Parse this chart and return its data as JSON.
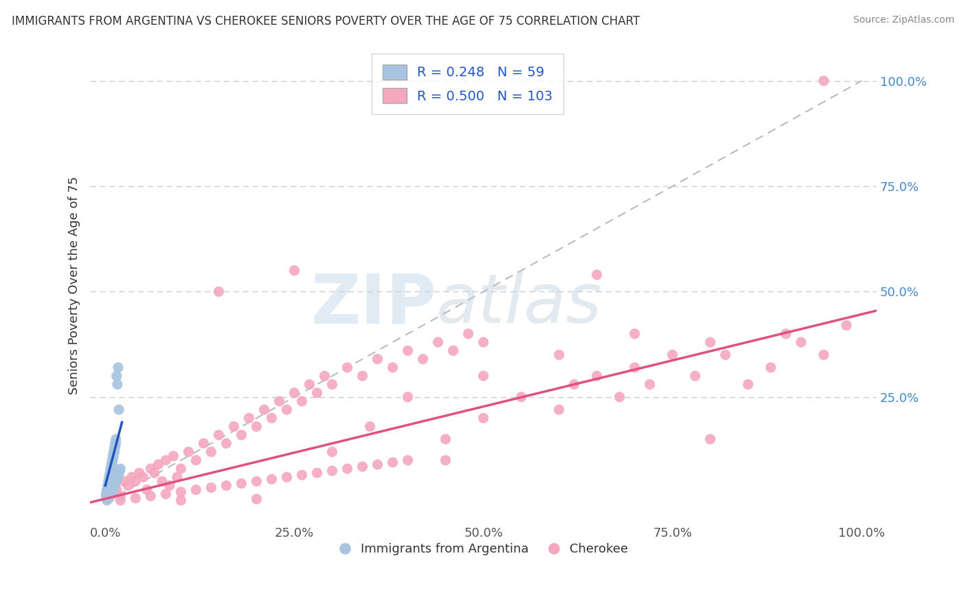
{
  "title": "IMMIGRANTS FROM ARGENTINA VS CHEROKEE SENIORS POVERTY OVER THE AGE OF 75 CORRELATION CHART",
  "source": "Source: ZipAtlas.com",
  "ylabel": "Seniors Poverty Over the Age of 75",
  "xlim": [
    -0.02,
    1.02
  ],
  "ylim": [
    -0.05,
    1.08
  ],
  "x_ticks": [
    0,
    0.25,
    0.5,
    0.75,
    1.0
  ],
  "x_tick_labels": [
    "0.0%",
    "25.0%",
    "50.0%",
    "75.0%",
    "100.0%"
  ],
  "y_ticks": [
    0.25,
    0.5,
    0.75,
    1.0
  ],
  "y_tick_labels": [
    "25.0%",
    "50.0%",
    "75.0%",
    "100.0%"
  ],
  "legend_blue_r": "0.248",
  "legend_blue_n": "59",
  "legend_pink_r": "0.500",
  "legend_pink_n": "103",
  "legend_label_blue": "Immigrants from Argentina",
  "legend_label_pink": "Cherokee",
  "blue_color": "#a8c4e0",
  "pink_color": "#f4a8c0",
  "blue_line_color": "#2255bb",
  "pink_line_color": "#e05080",
  "blue_scatter": [
    [
      0.001,
      0.02
    ],
    [
      0.001,
      0.015
    ],
    [
      0.002,
      0.03
    ],
    [
      0.002,
      0.025
    ],
    [
      0.002,
      0.02
    ],
    [
      0.003,
      0.04
    ],
    [
      0.003,
      0.03
    ],
    [
      0.003,
      0.02
    ],
    [
      0.004,
      0.05
    ],
    [
      0.004,
      0.04
    ],
    [
      0.004,
      0.03
    ],
    [
      0.005,
      0.06
    ],
    [
      0.005,
      0.05
    ],
    [
      0.005,
      0.04
    ],
    [
      0.006,
      0.07
    ],
    [
      0.006,
      0.06
    ],
    [
      0.006,
      0.05
    ],
    [
      0.007,
      0.08
    ],
    [
      0.007,
      0.07
    ],
    [
      0.007,
      0.06
    ],
    [
      0.008,
      0.09
    ],
    [
      0.008,
      0.08
    ],
    [
      0.008,
      0.07
    ],
    [
      0.009,
      0.1
    ],
    [
      0.009,
      0.09
    ],
    [
      0.009,
      0.08
    ],
    [
      0.01,
      0.11
    ],
    [
      0.01,
      0.1
    ],
    [
      0.011,
      0.12
    ],
    [
      0.011,
      0.11
    ],
    [
      0.012,
      0.13
    ],
    [
      0.012,
      0.12
    ],
    [
      0.013,
      0.14
    ],
    [
      0.013,
      0.13
    ],
    [
      0.014,
      0.15
    ],
    [
      0.014,
      0.14
    ],
    [
      0.015,
      0.3
    ],
    [
      0.016,
      0.28
    ],
    [
      0.017,
      0.32
    ],
    [
      0.018,
      0.22
    ],
    [
      0.002,
      0.005
    ],
    [
      0.003,
      0.008
    ],
    [
      0.004,
      0.01
    ],
    [
      0.005,
      0.012
    ],
    [
      0.006,
      0.015
    ],
    [
      0.007,
      0.018
    ],
    [
      0.008,
      0.02
    ],
    [
      0.009,
      0.025
    ],
    [
      0.01,
      0.03
    ],
    [
      0.011,
      0.035
    ],
    [
      0.012,
      0.04
    ],
    [
      0.013,
      0.045
    ],
    [
      0.014,
      0.05
    ],
    [
      0.015,
      0.055
    ],
    [
      0.016,
      0.06
    ],
    [
      0.017,
      0.065
    ],
    [
      0.018,
      0.07
    ],
    [
      0.019,
      0.075
    ],
    [
      0.02,
      0.08
    ]
  ],
  "pink_scatter": [
    [
      0.005,
      0.01
    ],
    [
      0.01,
      0.02
    ],
    [
      0.015,
      0.03
    ],
    [
      0.02,
      0.015
    ],
    [
      0.025,
      0.05
    ],
    [
      0.03,
      0.04
    ],
    [
      0.035,
      0.06
    ],
    [
      0.04,
      0.05
    ],
    [
      0.045,
      0.07
    ],
    [
      0.05,
      0.06
    ],
    [
      0.055,
      0.03
    ],
    [
      0.06,
      0.08
    ],
    [
      0.065,
      0.07
    ],
    [
      0.07,
      0.09
    ],
    [
      0.075,
      0.05
    ],
    [
      0.08,
      0.1
    ],
    [
      0.085,
      0.04
    ],
    [
      0.09,
      0.11
    ],
    [
      0.095,
      0.06
    ],
    [
      0.1,
      0.08
    ],
    [
      0.11,
      0.12
    ],
    [
      0.12,
      0.1
    ],
    [
      0.13,
      0.14
    ],
    [
      0.14,
      0.12
    ],
    [
      0.15,
      0.16
    ],
    [
      0.16,
      0.14
    ],
    [
      0.17,
      0.18
    ],
    [
      0.18,
      0.16
    ],
    [
      0.19,
      0.2
    ],
    [
      0.2,
      0.18
    ],
    [
      0.21,
      0.22
    ],
    [
      0.22,
      0.2
    ],
    [
      0.23,
      0.24
    ],
    [
      0.24,
      0.22
    ],
    [
      0.25,
      0.26
    ],
    [
      0.26,
      0.24
    ],
    [
      0.27,
      0.28
    ],
    [
      0.28,
      0.26
    ],
    [
      0.29,
      0.3
    ],
    [
      0.3,
      0.28
    ],
    [
      0.32,
      0.32
    ],
    [
      0.34,
      0.3
    ],
    [
      0.36,
      0.34
    ],
    [
      0.38,
      0.32
    ],
    [
      0.4,
      0.36
    ],
    [
      0.42,
      0.34
    ],
    [
      0.44,
      0.38
    ],
    [
      0.46,
      0.36
    ],
    [
      0.48,
      0.4
    ],
    [
      0.5,
      0.38
    ],
    [
      0.02,
      0.005
    ],
    [
      0.04,
      0.01
    ],
    [
      0.06,
      0.015
    ],
    [
      0.08,
      0.02
    ],
    [
      0.1,
      0.025
    ],
    [
      0.12,
      0.03
    ],
    [
      0.14,
      0.035
    ],
    [
      0.16,
      0.04
    ],
    [
      0.18,
      0.045
    ],
    [
      0.2,
      0.05
    ],
    [
      0.22,
      0.055
    ],
    [
      0.24,
      0.06
    ],
    [
      0.26,
      0.065
    ],
    [
      0.28,
      0.07
    ],
    [
      0.3,
      0.075
    ],
    [
      0.32,
      0.08
    ],
    [
      0.34,
      0.085
    ],
    [
      0.36,
      0.09
    ],
    [
      0.38,
      0.095
    ],
    [
      0.4,
      0.1
    ],
    [
      0.45,
      0.15
    ],
    [
      0.5,
      0.2
    ],
    [
      0.55,
      0.25
    ],
    [
      0.6,
      0.22
    ],
    [
      0.62,
      0.28
    ],
    [
      0.65,
      0.3
    ],
    [
      0.68,
      0.25
    ],
    [
      0.7,
      0.32
    ],
    [
      0.72,
      0.28
    ],
    [
      0.75,
      0.35
    ],
    [
      0.78,
      0.3
    ],
    [
      0.8,
      0.38
    ],
    [
      0.82,
      0.35
    ],
    [
      0.85,
      0.28
    ],
    [
      0.88,
      0.32
    ],
    [
      0.9,
      0.4
    ],
    [
      0.92,
      0.38
    ],
    [
      0.95,
      0.35
    ],
    [
      0.98,
      0.42
    ],
    [
      0.15,
      0.5
    ],
    [
      0.1,
      0.005
    ],
    [
      0.2,
      0.008
    ],
    [
      0.25,
      0.55
    ],
    [
      0.3,
      0.12
    ],
    [
      0.35,
      0.18
    ],
    [
      0.4,
      0.25
    ],
    [
      0.5,
      0.3
    ],
    [
      0.6,
      0.35
    ],
    [
      0.7,
      0.4
    ],
    [
      0.65,
      0.54
    ],
    [
      0.95,
      1.0
    ],
    [
      0.8,
      0.15
    ],
    [
      0.45,
      0.1
    ]
  ],
  "blue_trendline_x": [
    0.0,
    0.022
  ],
  "blue_trendline_y": [
    0.04,
    0.19
  ],
  "pink_trendline_x": [
    -0.02,
    1.02
  ],
  "pink_trendline_y": [
    0.0,
    0.455
  ],
  "dashed_line_x": [
    0.0,
    1.0
  ],
  "dashed_line_y": [
    0.0,
    1.0
  ],
  "watermark_zip": "ZIP",
  "watermark_atlas": "atlas",
  "background_color": "#ffffff",
  "grid_color": "#cccccc",
  "tick_color": "#4488cc"
}
